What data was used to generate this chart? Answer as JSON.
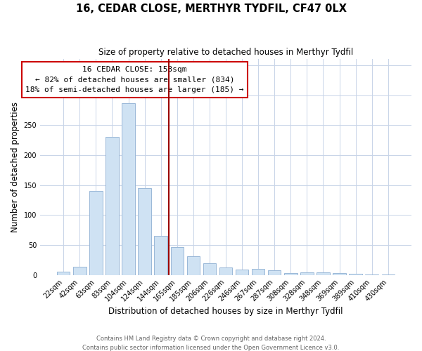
{
  "title": "16, CEDAR CLOSE, MERTHYR TYDFIL, CF47 0LX",
  "subtitle": "Size of property relative to detached houses in Merthyr Tydfil",
  "xlabel": "Distribution of detached houses by size in Merthyr Tydfil",
  "ylabel": "Number of detached properties",
  "bar_labels": [
    "22sqm",
    "42sqm",
    "63sqm",
    "83sqm",
    "104sqm",
    "124sqm",
    "144sqm",
    "165sqm",
    "185sqm",
    "206sqm",
    "226sqm",
    "246sqm",
    "267sqm",
    "287sqm",
    "308sqm",
    "328sqm",
    "348sqm",
    "369sqm",
    "389sqm",
    "410sqm",
    "430sqm"
  ],
  "bar_values": [
    5,
    14,
    140,
    230,
    287,
    145,
    65,
    46,
    31,
    20,
    12,
    9,
    10,
    8,
    3,
    4,
    4,
    3,
    2,
    1,
    1
  ],
  "bar_color": "#cfe2f3",
  "bar_edge_color": "#9ab8d8",
  "vline_color": "#990000",
  "annotation_title": "16 CEDAR CLOSE: 153sqm",
  "annotation_line1": "← 82% of detached houses are smaller (834)",
  "annotation_line2": "18% of semi-detached houses are larger (185) →",
  "annotation_box_color": "#ffffff",
  "annotation_box_edge": "#cc0000",
  "ylim": [
    0,
    360
  ],
  "yticks": [
    0,
    50,
    100,
    150,
    200,
    250,
    300,
    350
  ],
  "footer1": "Contains HM Land Registry data © Crown copyright and database right 2024.",
  "footer2": "Contains public sector information licensed under the Open Government Licence v3.0.",
  "background_color": "#ffffff",
  "grid_color": "#c8d4e8",
  "n_bars": 21,
  "vline_index": 7
}
